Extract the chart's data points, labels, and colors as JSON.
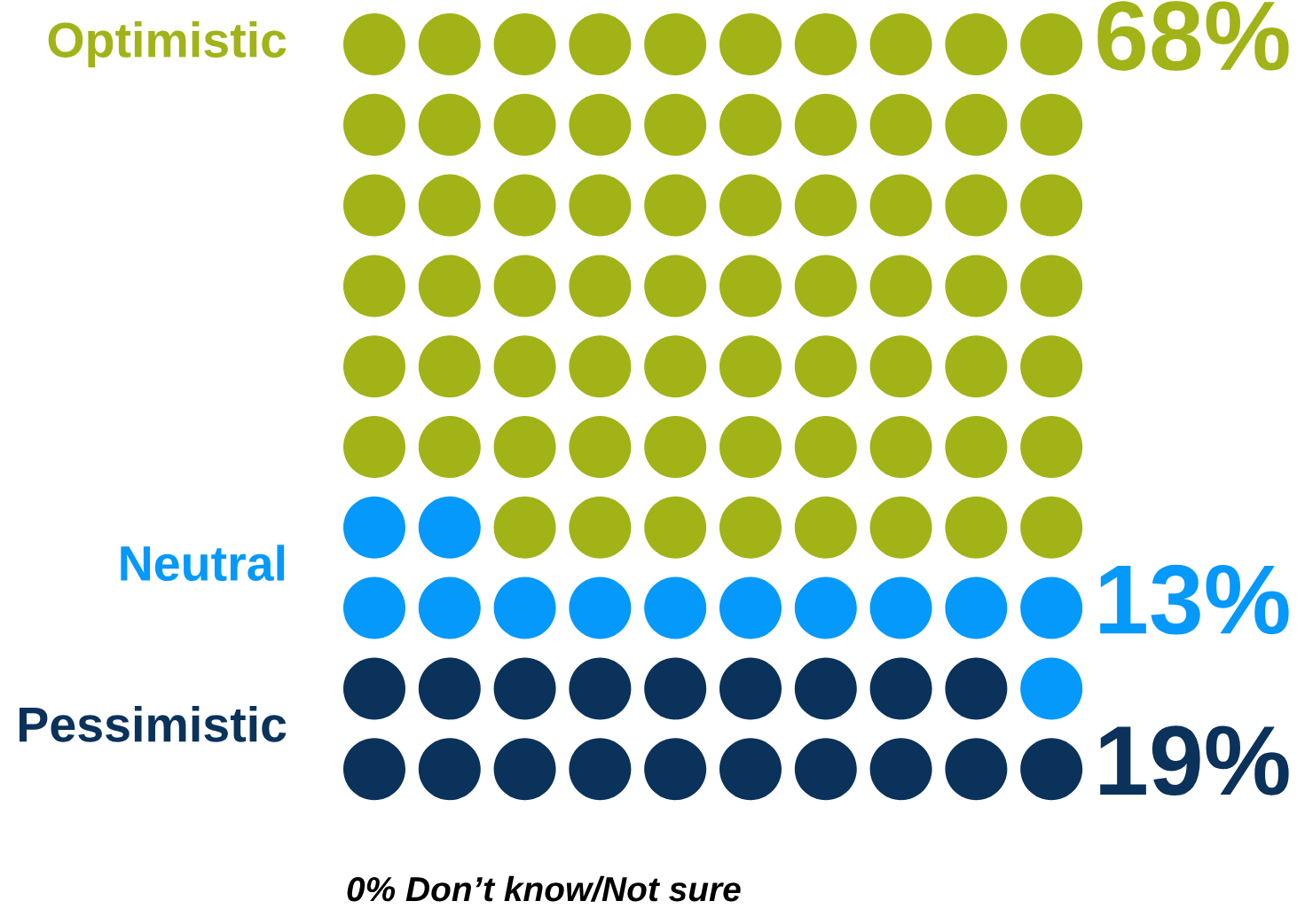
{
  "chart_data": {
    "type": "other",
    "categories": [
      "Optimistic",
      "Neutral",
      "Pessimistic"
    ],
    "values": [
      68,
      13,
      19
    ],
    "colors": [
      "#a1b317",
      "#0499fb",
      "#0a325b"
    ],
    "value_labels": [
      "68%",
      "13%",
      "19%"
    ],
    "annotations": [
      "0% Don’t know/Not sure"
    ]
  }
}
